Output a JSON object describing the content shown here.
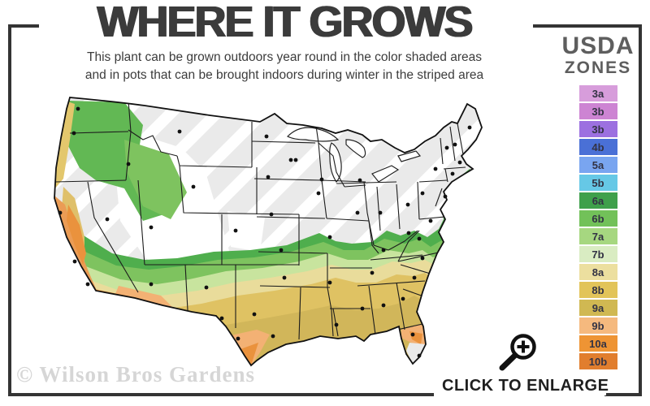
{
  "title": "WHERE IT GROWS",
  "subtitle": {
    "line1": "This plant can be grown outdoors year round in the color shaded areas",
    "line2": "and in pots that can be brought indoors during winter in the striped area"
  },
  "legend": {
    "heading_line1": "USDA",
    "heading_line2": "ZONES",
    "zones": [
      {
        "label": "3a",
        "color": "#d79ddb"
      },
      {
        "label": "3b",
        "color": "#cd84d3"
      },
      {
        "label": "3b",
        "color": "#9c70e0"
      },
      {
        "label": "4b",
        "color": "#4a70d6"
      },
      {
        "label": "5a",
        "color": "#79a5f0"
      },
      {
        "label": "5b",
        "color": "#66c8e6"
      },
      {
        "label": "6a",
        "color": "#3fa04b"
      },
      {
        "label": "6b",
        "color": "#72c159"
      },
      {
        "label": "7a",
        "color": "#a6d780"
      },
      {
        "label": "7b",
        "color": "#d9ecc2"
      },
      {
        "label": "8a",
        "color": "#ecdf9f"
      },
      {
        "label": "8b",
        "color": "#e2c459"
      },
      {
        "label": "9a",
        "color": "#d0b852"
      },
      {
        "label": "9b",
        "color": "#f5b97e"
      },
      {
        "label": "10a",
        "color": "#ee9434"
      },
      {
        "label": "10b",
        "color": "#e17e2e"
      }
    ]
  },
  "map": {
    "description": "USDA zones map of the United States",
    "striped_color": "#eaeaea",
    "band_colors": [
      "#4fae4d",
      "#7ec35f",
      "#c8e49e",
      "#e9dc9b",
      "#dfc263",
      "#d1b65a",
      "#f3b174",
      "#ea923d"
    ]
  },
  "watermark": "© Wilson Bros Gardens",
  "enlarge_label": "CLICK TO ENLARGE"
}
